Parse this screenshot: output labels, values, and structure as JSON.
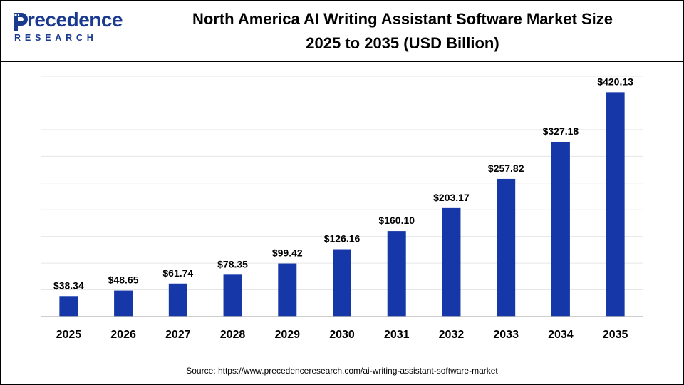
{
  "header": {
    "logo": {
      "word": "recedence",
      "sub": "RESEARCH",
      "brand_color": "#1a3a8f"
    },
    "title_line1": "North America AI Writing Assistant Software Market Size",
    "title_line2": "2025 to 2035 (USD Billion)"
  },
  "source": "Source: https://www.precedenceresearch.com/ai-writing-assistant-software-market",
  "chart_data": {
    "type": "bar",
    "title": "North America AI Writing Assistant Software Market Size 2025 to 2035 (USD Billion)",
    "categories": [
      "2025",
      "2026",
      "2027",
      "2028",
      "2029",
      "2030",
      "2031",
      "2032",
      "2033",
      "2034",
      "2035"
    ],
    "values": [
      38.34,
      48.65,
      61.74,
      78.35,
      99.42,
      126.16,
      160.1,
      203.17,
      257.82,
      327.18,
      420.13
    ],
    "labels": [
      "$38.34",
      "$48.65",
      "$61.74",
      "$78.35",
      "$99.42",
      "$126.16",
      "$160.10",
      "$203.17",
      "$257.82",
      "$327.18",
      "$420.13"
    ],
    "bar_color": "#1537a8",
    "ylim": [
      0,
      450
    ],
    "grid": true,
    "xlabel": "",
    "ylabel": ""
  }
}
